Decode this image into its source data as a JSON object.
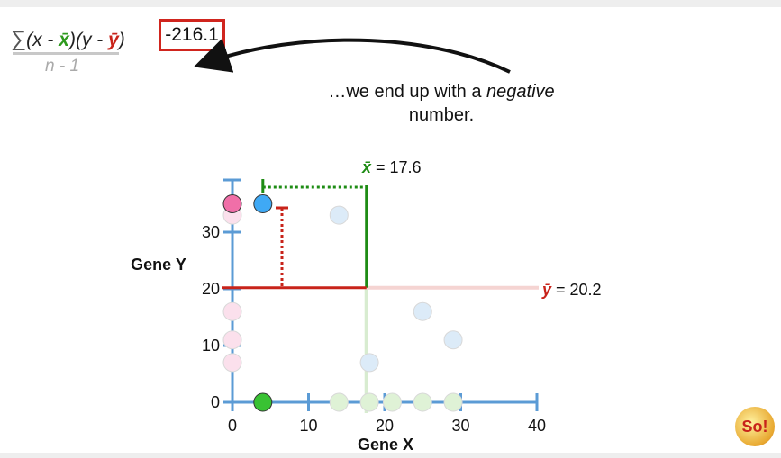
{
  "formula": {
    "sigma": "∑",
    "open_x": "(x - ",
    "xbar": "x̄",
    "close_x": ")",
    "open_y": "(y - ",
    "ybar": "ȳ",
    "close_y": ")",
    "denominator": "n - 1"
  },
  "result": "-216.1",
  "caption": {
    "before": "…we end up with a ",
    "emphasis": "negative",
    "after": "number."
  },
  "labels": {
    "xbar_symbol": "x̄",
    "xbar_text": " = 17.6",
    "ybar_symbol": "ȳ",
    "ybar_text": " = 20.2"
  },
  "logo_text": "So!",
  "chart_data": {
    "type": "scatter",
    "xlabel": "Gene X",
    "ylabel": "Gene Y",
    "xlim": [
      0,
      40
    ],
    "ylim": [
      0,
      35
    ],
    "x_ticks": [
      0,
      10,
      20,
      30,
      40
    ],
    "y_ticks": [
      0,
      10,
      20,
      30
    ],
    "means": {
      "x": 17.6,
      "y": 20.2
    },
    "highlighted_points": [
      {
        "x": 0,
        "y": 35,
        "color": "#f06fa8"
      },
      {
        "x": 4,
        "y": 35,
        "color": "#3fa9f5"
      },
      {
        "x": 4,
        "y": 0,
        "color": "#39c233"
      }
    ],
    "faded_points": [
      {
        "x": 0,
        "y": 33,
        "color": "#fbe0ec"
      },
      {
        "x": 0,
        "y": 16,
        "color": "#fbe0ec"
      },
      {
        "x": 0,
        "y": 11,
        "color": "#fbe0ec"
      },
      {
        "x": 0,
        "y": 7,
        "color": "#fbe0ec"
      },
      {
        "x": 14,
        "y": 33,
        "color": "#dcebf8"
      },
      {
        "x": 18,
        "y": 7,
        "color": "#dcebf8"
      },
      {
        "x": 25,
        "y": 16,
        "color": "#dcebf8"
      },
      {
        "x": 29,
        "y": 11,
        "color": "#dcebf8"
      },
      {
        "x": 14,
        "y": 0,
        "color": "#dff2d6"
      },
      {
        "x": 18,
        "y": 0,
        "color": "#dff2d6"
      },
      {
        "x": 21,
        "y": 0,
        "color": "#dff2d6"
      },
      {
        "x": 25,
        "y": 0,
        "color": "#dff2d6"
      },
      {
        "x": 29,
        "y": 0,
        "color": "#dff2d6"
      }
    ],
    "colors": {
      "axis": "#5b9bd5",
      "x_mean": "#1e8c14",
      "y_mean": "#c8231a",
      "x_mean_faded": "#d8ecd0",
      "y_mean_faded": "#f5d4d2"
    }
  }
}
